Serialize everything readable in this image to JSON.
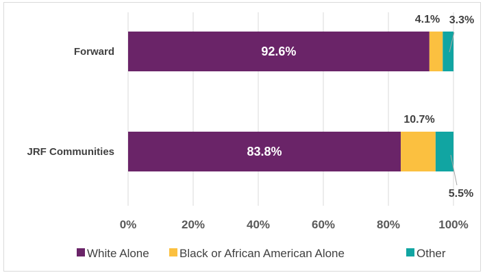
{
  "chart_data": {
    "type": "bar",
    "orientation": "horizontal",
    "stacked": true,
    "categories": [
      "Forward",
      "JRF Communities"
    ],
    "series": [
      {
        "name": "White Alone",
        "color": "#6a2468",
        "values": [
          92.6,
          83.8
        ]
      },
      {
        "name": "Black or African American Alone",
        "color": "#fbc040",
        "values": [
          4.1,
          10.7
        ]
      },
      {
        "name": "Other",
        "color": "#11a5a2",
        "values": [
          3.3,
          5.5
        ]
      }
    ],
    "data_labels": {
      "White Alone": [
        "92.6%",
        "83.8%"
      ],
      "Black or African American Alone": [
        "4.1%",
        "10.7%"
      ],
      "Other": [
        "3.3%",
        "5.5%"
      ]
    },
    "x_ticks": [
      "0%",
      "20%",
      "40%",
      "60%",
      "80%",
      "100%"
    ],
    "xlim": [
      0,
      100
    ],
    "grid": true,
    "legend_position": "bottom"
  }
}
